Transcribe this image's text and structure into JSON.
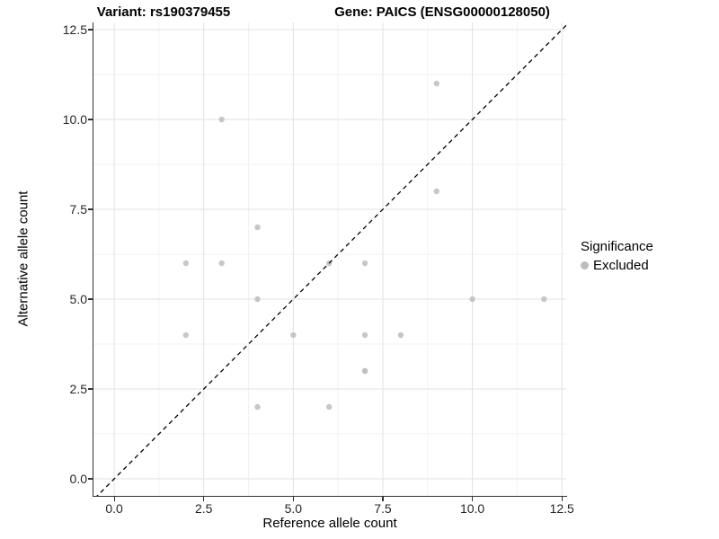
{
  "chart_data": {
    "type": "scatter",
    "titles": {
      "left": "Variant: rs190379455",
      "right": "Gene: PAICS (ENSG00000128050)"
    },
    "xlabel": "Reference allele count",
    "ylabel": "Alternative allele count",
    "x_ticks": {
      "values": [
        0,
        2.5,
        5,
        7.5,
        10,
        12.5
      ],
      "labels": [
        "0.0",
        "2.5",
        "5.0",
        "7.5",
        "10.0",
        "12.5"
      ]
    },
    "y_ticks": {
      "values": [
        0,
        2.5,
        5,
        7.5,
        10,
        12.5
      ],
      "labels": [
        "0.0",
        "2.5",
        "5.0",
        "7.5",
        "10.0",
        "12.5"
      ]
    },
    "minor_ticks": [
      1.25,
      3.75,
      6.25,
      8.75,
      11.25
    ],
    "xlim": [
      -0.58,
      12.62
    ],
    "ylim": [
      -0.475,
      12.7
    ],
    "grid": {
      "major_color": "#e2e2e2",
      "minor_color": "#f2f2f2",
      "background": "#ffffff"
    },
    "identity_line": {
      "equation": "y = x",
      "style": "dashed",
      "color": "#000000"
    },
    "series": [
      {
        "name": "Excluded",
        "color": "#bdbdbd",
        "alpha": 0.85,
        "points": [
          [
            2,
            4
          ],
          [
            2,
            6
          ],
          [
            3,
            6
          ],
          [
            3,
            10
          ],
          [
            4,
            2
          ],
          [
            4,
            5
          ],
          [
            4,
            7
          ],
          [
            5,
            4
          ],
          [
            6,
            2
          ],
          [
            6,
            6
          ],
          [
            7,
            3
          ],
          [
            7,
            3
          ],
          [
            7,
            4
          ],
          [
            7,
            6
          ],
          [
            8,
            4
          ],
          [
            9,
            8
          ],
          [
            9,
            11
          ],
          [
            10,
            5
          ],
          [
            12,
            5
          ]
        ]
      }
    ],
    "legend": {
      "title": "Significance",
      "position": "right",
      "items": [
        {
          "label": "Excluded",
          "color": "#bdbdbd"
        }
      ]
    }
  }
}
